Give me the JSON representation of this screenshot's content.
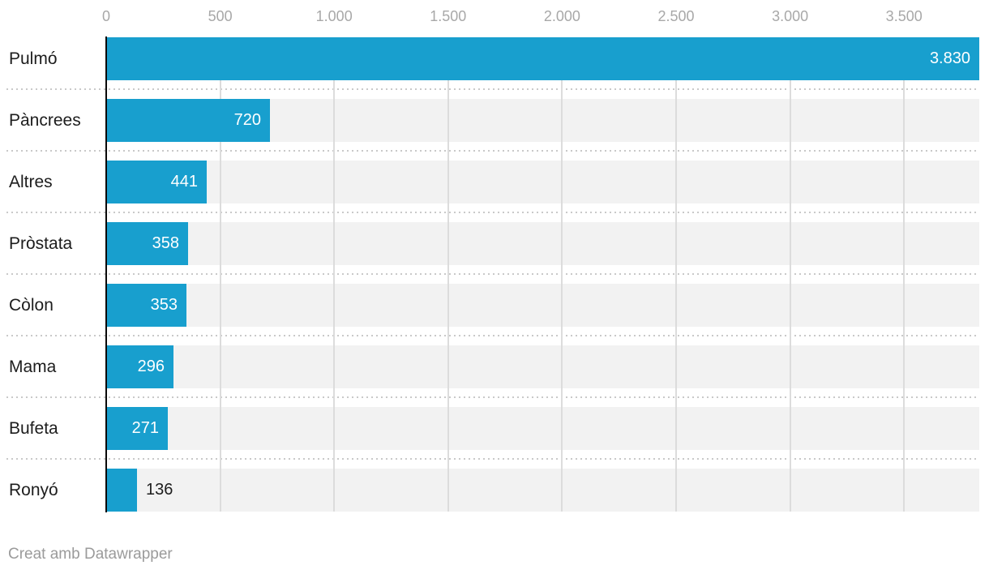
{
  "chart_data": {
    "type": "bar",
    "orientation": "horizontal",
    "title": "",
    "categories": [
      "Pulmó",
      "Pàncrees",
      "Altres",
      "Pròstata",
      "Còlon",
      "Mama",
      "Bufeta",
      "Ronyó"
    ],
    "values": [
      3830,
      720,
      441,
      358,
      353,
      296,
      271,
      136
    ],
    "value_labels": [
      "3.830",
      "720",
      "441",
      "358",
      "353",
      "296",
      "271",
      "136"
    ],
    "x_axis": {
      "min": 0,
      "max": 3830,
      "ticks": [
        0,
        500,
        1000,
        1500,
        2000,
        2500,
        3000,
        3500
      ],
      "tick_labels": [
        "0",
        "500",
        "1.000",
        "1.500",
        "2.000",
        "2.500",
        "3.000",
        "3.500"
      ],
      "grid": true,
      "position": "top"
    },
    "legend": null,
    "colors": {
      "bar": "#189fce",
      "row_background": "#f2f2f2",
      "gridline": "#dcdcdc",
      "axis_line": "#0a0a0a",
      "tick_label": "#a8a8a8",
      "category_label": "#1d1d1d",
      "value_label_inside": "#ffffff",
      "value_label_outside": "#1d1d1d",
      "separator_dots": "#c9c9c9"
    }
  },
  "footer": {
    "credit": "Creat amb Datawrapper"
  }
}
